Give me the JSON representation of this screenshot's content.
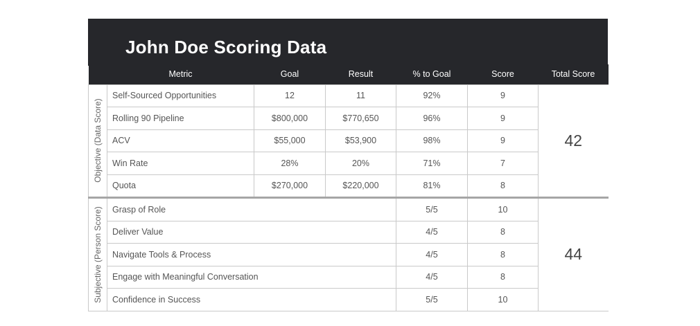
{
  "title": "John Doe Scoring Data",
  "headers": {
    "metric": "Metric",
    "goal": "Goal",
    "result": "Result",
    "pct_to_goal": "% to Goal",
    "score": "Score",
    "total_score": "Total Score"
  },
  "objective": {
    "label": "Objective (Data Score)",
    "total": "42",
    "rows": [
      {
        "metric": "Self-Sourced Opportunities",
        "goal": "12",
        "result": "11",
        "pct": "92%",
        "score": "9"
      },
      {
        "metric": "Rolling 90 Pipeline",
        "goal": "$800,000",
        "result": "$770,650",
        "pct": "96%",
        "score": "9"
      },
      {
        "metric": "ACV",
        "goal": "$55,000",
        "result": "$53,900",
        "pct": "98%",
        "score": "9"
      },
      {
        "metric": "Win Rate",
        "goal": "28%",
        "result": "20%",
        "pct": "71%",
        "score": "7"
      },
      {
        "metric": "Quota",
        "goal": "$270,000",
        "result": "$220,000",
        "pct": "81%",
        "score": "8"
      }
    ]
  },
  "subjective": {
    "label": "Subjective (Person Score)",
    "total": "44",
    "rows": [
      {
        "metric": "Grasp of Role",
        "pct": "5/5",
        "score": "10"
      },
      {
        "metric": "Deliver Value",
        "pct": "4/5",
        "score": "8"
      },
      {
        "metric": "Navigate Tools & Process",
        "pct": "4/5",
        "score": "8"
      },
      {
        "metric": "Engage with Meaningful Conversation",
        "pct": "4/5",
        "score": "8"
      },
      {
        "metric": "Confidence in Success",
        "pct": "5/5",
        "score": "10"
      }
    ]
  }
}
